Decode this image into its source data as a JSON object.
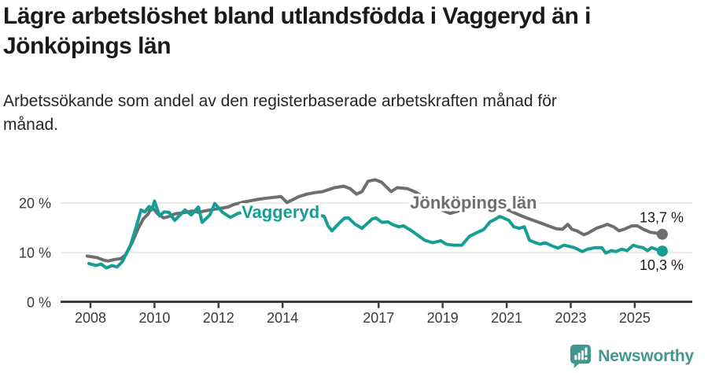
{
  "header": {
    "title_lines": [
      "Lägre arbetslöshet bland utlandsfödda i Vaggeryd än i",
      "Jönköpings län"
    ],
    "subtitle_lines": [
      "Arbetssökande som andel av den registerbaserade arbetskraften månad för",
      "månad."
    ]
  },
  "footer": {
    "brand": "Newsworthy",
    "brand_color": "#43968f"
  },
  "chart_data": {
    "type": "line",
    "title": "Lägre arbetslöshet bland utlandsfödda i Vaggeryd än i Jönköpings län",
    "subtitle": "Arbetssökande som andel av den registerbaserade arbetskraften månad för månad.",
    "ylabel": "",
    "xlabel": "",
    "ylim": [
      0,
      27
    ],
    "xlim": [
      2007.1,
      2026.8
    ],
    "grid": "horizontal",
    "legend_position": "inline-labels",
    "x_ticks": [
      2008,
      2010,
      2012,
      2014,
      2017,
      2019,
      2021,
      2023,
      2025
    ],
    "y_ticks": [
      {
        "value": 0,
        "label": "0 %"
      },
      {
        "value": 10,
        "label": "10 %"
      },
      {
        "value": 20,
        "label": "20 %"
      }
    ],
    "colors": {
      "grid": "#e3e3e3",
      "axis": "#3d3d3d",
      "tick_text": "#3a3a3a",
      "value_text": "#1a1a1a"
    },
    "series": [
      {
        "id": "jonkopings-lan",
        "name": "Jönköpings län",
        "color": "#6e6e6e",
        "end_label": "13,7 %",
        "end_label_side": "above",
        "label_pos": {
          "year": 2017.98,
          "value": 18.9
        },
        "points": [
          [
            2007.9,
            9.3
          ],
          [
            2008.2,
            9.0
          ],
          [
            2008.4,
            8.5
          ],
          [
            2008.55,
            8.3
          ],
          [
            2008.75,
            8.6
          ],
          [
            2008.95,
            8.8
          ],
          [
            2009.1,
            9.6
          ],
          [
            2009.3,
            12.0
          ],
          [
            2009.5,
            15.0
          ],
          [
            2009.65,
            16.8
          ],
          [
            2009.8,
            17.8
          ],
          [
            2009.92,
            19.2
          ],
          [
            2010.1,
            17.8
          ],
          [
            2010.29,
            17.0
          ],
          [
            2010.46,
            17.3
          ],
          [
            2010.63,
            17.8
          ],
          [
            2010.95,
            18.1
          ],
          [
            2011.19,
            18.4
          ],
          [
            2011.37,
            18.1
          ],
          [
            2011.56,
            18.4
          ],
          [
            2011.73,
            18.6
          ],
          [
            2012.05,
            18.9
          ],
          [
            2012.3,
            19.2
          ],
          [
            2012.47,
            19.7
          ],
          [
            2012.79,
            20.2
          ],
          [
            2013.04,
            20.5
          ],
          [
            2013.28,
            20.8
          ],
          [
            2013.53,
            21.0
          ],
          [
            2013.95,
            21.3
          ],
          [
            2014.14,
            20.1
          ],
          [
            2014.51,
            21.3
          ],
          [
            2014.76,
            21.8
          ],
          [
            2015.0,
            22.1
          ],
          [
            2015.25,
            22.3
          ],
          [
            2015.62,
            23.1
          ],
          [
            2015.91,
            23.4
          ],
          [
            2016.11,
            22.9
          ],
          [
            2016.31,
            21.8
          ],
          [
            2016.48,
            22.3
          ],
          [
            2016.67,
            24.4
          ],
          [
            2016.89,
            24.7
          ],
          [
            2017.09,
            24.2
          ],
          [
            2017.39,
            22.3
          ],
          [
            2017.58,
            23.1
          ],
          [
            2017.76,
            23.0
          ],
          [
            2017.9,
            22.9
          ],
          [
            2018.15,
            22.2
          ],
          [
            2018.4,
            21.2
          ],
          [
            2018.7,
            19.9
          ],
          [
            2019.0,
            18.5
          ],
          [
            2019.23,
            17.9
          ],
          [
            2019.5,
            18.4
          ],
          [
            2019.8,
            18.9
          ],
          [
            2020.1,
            19.5
          ],
          [
            2020.4,
            20.0
          ],
          [
            2020.7,
            19.6
          ],
          [
            2020.95,
            18.9
          ],
          [
            2021.15,
            18.3
          ],
          [
            2021.32,
            17.8
          ],
          [
            2021.5,
            17.3
          ],
          [
            2021.71,
            16.8
          ],
          [
            2021.96,
            16.2
          ],
          [
            2022.3,
            15.4
          ],
          [
            2022.55,
            14.8
          ],
          [
            2022.74,
            14.7
          ],
          [
            2022.91,
            15.7
          ],
          [
            2023.04,
            14.7
          ],
          [
            2023.19,
            14.4
          ],
          [
            2023.41,
            13.6
          ],
          [
            2023.53,
            13.9
          ],
          [
            2023.8,
            14.9
          ],
          [
            2024.02,
            15.4
          ],
          [
            2024.14,
            15.7
          ],
          [
            2024.34,
            15.2
          ],
          [
            2024.51,
            14.4
          ],
          [
            2024.66,
            14.7
          ],
          [
            2024.91,
            15.4
          ],
          [
            2025.08,
            15.4
          ],
          [
            2025.27,
            14.7
          ],
          [
            2025.49,
            14.1
          ],
          [
            2025.7,
            13.9
          ],
          [
            2025.86,
            13.7
          ]
        ]
      },
      {
        "id": "vaggeryd",
        "name": "Vaggeryd",
        "color": "#149e94",
        "end_label": "10,3 %",
        "end_label_side": "below",
        "label_pos": {
          "year": 2012.72,
          "value": 17.0
        },
        "points": [
          [
            2007.95,
            7.8
          ],
          [
            2008.17,
            7.4
          ],
          [
            2008.33,
            7.7
          ],
          [
            2008.5,
            6.9
          ],
          [
            2008.67,
            7.4
          ],
          [
            2008.83,
            7.1
          ],
          [
            2009.0,
            8.2
          ],
          [
            2009.25,
            11.5
          ],
          [
            2009.42,
            15.0
          ],
          [
            2009.58,
            18.6
          ],
          [
            2009.7,
            18.2
          ],
          [
            2009.83,
            19.3
          ],
          [
            2009.92,
            18.6
          ],
          [
            2010.0,
            20.4
          ],
          [
            2010.16,
            17.4
          ],
          [
            2010.3,
            18.2
          ],
          [
            2010.46,
            18.1
          ],
          [
            2010.63,
            16.5
          ],
          [
            2010.8,
            17.6
          ],
          [
            2010.95,
            18.6
          ],
          [
            2011.15,
            17.6
          ],
          [
            2011.37,
            19.2
          ],
          [
            2011.49,
            16.1
          ],
          [
            2011.73,
            17.6
          ],
          [
            2011.88,
            19.9
          ],
          [
            2012.13,
            18.1
          ],
          [
            2012.37,
            17.1
          ],
          [
            2012.6,
            17.9
          ],
          [
            2012.9,
            18.3
          ],
          [
            2013.2,
            17.6
          ],
          [
            2013.5,
            18.1
          ],
          [
            2013.8,
            17.4
          ],
          [
            2014.1,
            17.8
          ],
          [
            2014.4,
            18.4
          ],
          [
            2014.7,
            17.7
          ],
          [
            2014.95,
            18.0
          ],
          [
            2015.1,
            17.6
          ],
          [
            2015.3,
            17.3
          ],
          [
            2015.42,
            15.4
          ],
          [
            2015.54,
            14.4
          ],
          [
            2015.81,
            16.2
          ],
          [
            2015.94,
            17.0
          ],
          [
            2016.06,
            17.0
          ],
          [
            2016.25,
            15.8
          ],
          [
            2016.48,
            14.9
          ],
          [
            2016.65,
            15.9
          ],
          [
            2016.8,
            16.8
          ],
          [
            2016.92,
            17.0
          ],
          [
            2017.1,
            16.1
          ],
          [
            2017.29,
            16.2
          ],
          [
            2017.45,
            15.6
          ],
          [
            2017.63,
            15.2
          ],
          [
            2017.78,
            15.4
          ],
          [
            2018.03,
            14.4
          ],
          [
            2018.2,
            13.6
          ],
          [
            2018.44,
            12.5
          ],
          [
            2018.69,
            12.0
          ],
          [
            2018.94,
            12.4
          ],
          [
            2019.11,
            11.7
          ],
          [
            2019.35,
            11.5
          ],
          [
            2019.6,
            11.5
          ],
          [
            2019.84,
            13.3
          ],
          [
            2020.09,
            14.1
          ],
          [
            2020.29,
            14.7
          ],
          [
            2020.48,
            16.2
          ],
          [
            2020.66,
            16.8
          ],
          [
            2020.78,
            17.3
          ],
          [
            2020.9,
            17.0
          ],
          [
            2021.07,
            16.5
          ],
          [
            2021.22,
            15.2
          ],
          [
            2021.39,
            14.9
          ],
          [
            2021.55,
            15.2
          ],
          [
            2021.71,
            12.5
          ],
          [
            2021.9,
            12.0
          ],
          [
            2022.05,
            11.7
          ],
          [
            2022.2,
            12.0
          ],
          [
            2022.4,
            11.4
          ],
          [
            2022.6,
            10.9
          ],
          [
            2022.79,
            11.5
          ],
          [
            2022.99,
            11.2
          ],
          [
            2023.11,
            11.0
          ],
          [
            2023.36,
            10.2
          ],
          [
            2023.53,
            10.7
          ],
          [
            2023.77,
            11.0
          ],
          [
            2023.97,
            11.0
          ],
          [
            2024.09,
            9.9
          ],
          [
            2024.27,
            10.4
          ],
          [
            2024.41,
            10.2
          ],
          [
            2024.59,
            10.7
          ],
          [
            2024.76,
            10.4
          ],
          [
            2024.95,
            11.5
          ],
          [
            2025.08,
            11.2
          ],
          [
            2025.25,
            11.0
          ],
          [
            2025.4,
            10.4
          ],
          [
            2025.52,
            11.0
          ],
          [
            2025.7,
            10.6
          ],
          [
            2025.86,
            10.3
          ]
        ]
      }
    ]
  }
}
